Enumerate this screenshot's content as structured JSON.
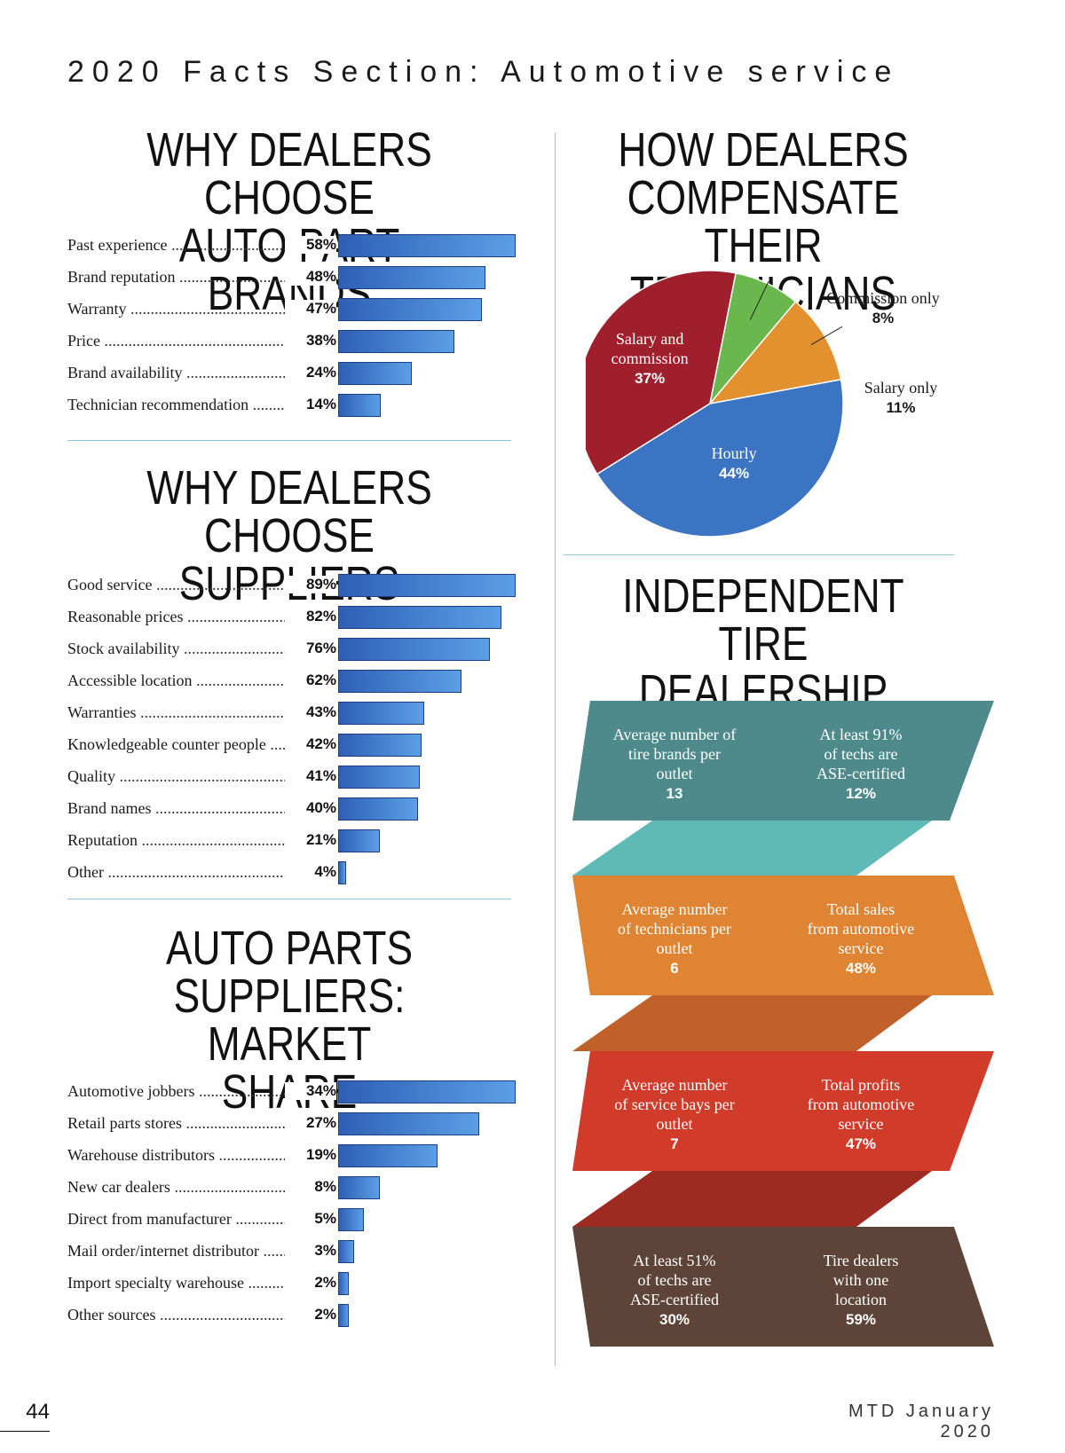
{
  "header": {
    "title": "2020 Facts Section: Automotive service"
  },
  "footer": {
    "page_number": "44",
    "publication": "MTD January 2020"
  },
  "sections": {
    "auto_part_brands": {
      "title_line1": "WHY DEALERS CHOOSE",
      "title_line2": "AUTO PART BRANDS"
    },
    "suppliers": {
      "title_line1": "WHY DEALERS CHOOSE",
      "title_line2": "SUPPLIERS"
    },
    "market_share": {
      "title_line1": "AUTO PARTS",
      "title_line2": "SUPPLIERS: MARKET",
      "title_line3": "SHARE"
    },
    "compensation": {
      "title_line1": "HOW DEALERS",
      "title_line2": "COMPENSATE THEIR",
      "title_line3": "TECHNICIANS"
    },
    "profile": {
      "title_line1": "INDEPENDENT TIRE",
      "title_line2": "DEALERSHIP PROFILE"
    }
  },
  "chart_data": [
    {
      "type": "bar",
      "title": "WHY DEALERS CHOOSE AUTO PART BRANDS",
      "categories": [
        "Past experience",
        "Brand reputation",
        "Warranty",
        "Price",
        "Brand availability",
        "Technician recommendation"
      ],
      "values": [
        58,
        48,
        47,
        38,
        24,
        14
      ],
      "value_labels": [
        "58%",
        "48%",
        "47%",
        "38%",
        "24%",
        "14%"
      ]
    },
    {
      "type": "bar",
      "title": "WHY DEALERS CHOOSE SUPPLIERS",
      "categories": [
        "Good service",
        "Reasonable prices",
        "Stock availability",
        "Accessible location",
        "Warranties",
        "Knowledgeable counter people",
        "Quality",
        "Brand names",
        "Reputation",
        "Other"
      ],
      "values": [
        89,
        82,
        76,
        62,
        43,
        42,
        41,
        40,
        21,
        4
      ],
      "value_labels": [
        "89%",
        "82%",
        "76%",
        "62%",
        "43%",
        "42%",
        "41%",
        "40%",
        "21%",
        "4%"
      ]
    },
    {
      "type": "bar",
      "title": "AUTO PARTS SUPPLIERS: MARKET SHARE",
      "categories": [
        "Automotive jobbers",
        "Retail parts stores",
        "Warehouse distributors",
        "New car dealers",
        "Direct from manufacturer",
        "Mail order/internet distributor",
        "Import specialty warehouse",
        "Other sources"
      ],
      "values": [
        34,
        27,
        19,
        8,
        5,
        3,
        2,
        2
      ],
      "value_labels": [
        "34%",
        "27%",
        "19%",
        "8%",
        "5%",
        "3%",
        "2%",
        "2%"
      ]
    },
    {
      "type": "pie",
      "title": "HOW DEALERS COMPENSATE THEIR TECHNICIANS",
      "slices": [
        {
          "label_line1": "Salary and",
          "label_line2": "commission",
          "value": 37,
          "value_label": "37%",
          "color": "#a01f2d"
        },
        {
          "label_line1": "Commission only",
          "label_line2": "",
          "value": 8,
          "value_label": "8%",
          "color": "#6ab74e"
        },
        {
          "label_line1": "Salary only",
          "label_line2": "",
          "value": 11,
          "value_label": "11%",
          "color": "#e3912f"
        },
        {
          "label_line1": "Hourly",
          "label_line2": "",
          "value": 44,
          "value_label": "44%",
          "color": "#3c74c4"
        }
      ]
    }
  ],
  "profile": {
    "bands": [
      {
        "color": "#4e8a8c",
        "fold_color": "#5fb9b6",
        "left": {
          "lines": [
            "Average number of",
            "tire brands per",
            "outlet"
          ],
          "value": "13"
        },
        "right": {
          "lines": [
            "At least 91%",
            "of techs are",
            "ASE-certified"
          ],
          "value": "12%"
        }
      },
      {
        "color": "#de8433",
        "fold_color": "#c0612b",
        "left": {
          "lines": [
            "Average number",
            "of technicians per",
            "outlet"
          ],
          "value": "6"
        },
        "right": {
          "lines": [
            "Total sales",
            "from automotive",
            "service"
          ],
          "value": "48%"
        }
      },
      {
        "color": "#d03b2a",
        "fold_color": "#9e2a22",
        "left": {
          "lines": [
            "Average number",
            "of service bays per",
            "outlet"
          ],
          "value": "7"
        },
        "right": {
          "lines": [
            "Total profits",
            "from automotive",
            "service"
          ],
          "value": "47%"
        }
      },
      {
        "color": "#5e4438",
        "fold_color": "#5e4438",
        "left": {
          "lines": [
            "At least 51%",
            "of techs are",
            "ASE-certified"
          ],
          "value": "30%"
        },
        "right": {
          "lines": [
            "Tire dealers",
            "with one",
            "location"
          ],
          "value": "59%"
        }
      }
    ]
  }
}
